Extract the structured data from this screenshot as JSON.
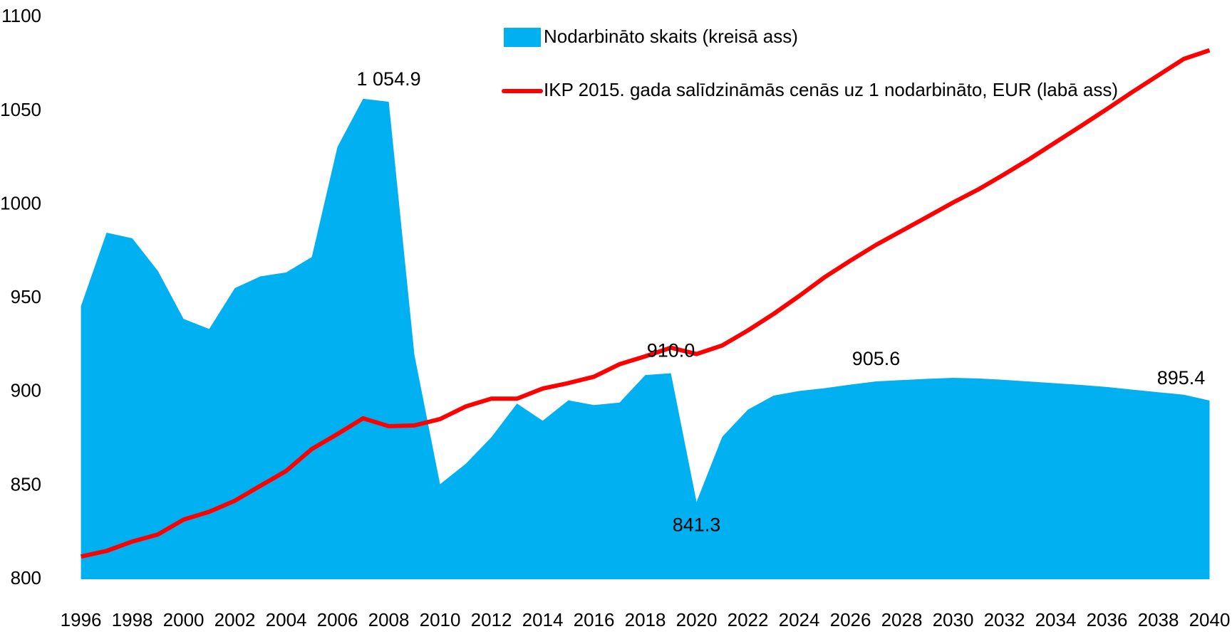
{
  "chart_data": {
    "type": "area-line",
    "x": [
      1996,
      1997,
      1998,
      1999,
      2000,
      2001,
      2002,
      2003,
      2004,
      2005,
      2006,
      2007,
      2008,
      2009,
      2010,
      2011,
      2012,
      2013,
      2014,
      2015,
      2016,
      2017,
      2018,
      2019,
      2020,
      2021,
      2022,
      2023,
      2024,
      2025,
      2026,
      2027,
      2028,
      2029,
      2030,
      2031,
      2032,
      2033,
      2034,
      2035,
      2036,
      2037,
      2038,
      2039,
      2040
    ],
    "series": [
      {
        "name": "Nodarbināto skaits (kreisā ass)",
        "kind": "area",
        "color": "#00b0f0",
        "values": [
          945.8,
          985,
          982,
          964.6,
          939,
          933.6,
          955.4,
          961.7,
          963.8,
          972,
          1030.8,
          1056.5,
          1054.9,
          919.8,
          850.7,
          861.6,
          875.8,
          893.8,
          884.6,
          895.5,
          893,
          894.3,
          909,
          910.0,
          841.3,
          876,
          890.5,
          898,
          900.5,
          902,
          903.9,
          905.6,
          906.3,
          907,
          907.5,
          907.2,
          906.4,
          905.5,
          904.6,
          903.7,
          902.6,
          901.2,
          899.8,
          898.5,
          895.4
        ],
        "value_labels": [
          null,
          null,
          null,
          null,
          null,
          null,
          null,
          null,
          null,
          null,
          null,
          null,
          "1 054.9",
          null,
          null,
          null,
          null,
          null,
          null,
          null,
          null,
          null,
          null,
          "910.0",
          "841.3",
          null,
          null,
          null,
          null,
          null,
          null,
          "905.6",
          null,
          null,
          null,
          null,
          null,
          null,
          null,
          null,
          null,
          null,
          null,
          null,
          "895.4"
        ]
      },
      {
        "name": "IKP 2015. gada salīdzināmās cenās uz 1 nodarbināto, EUR (labā ass)",
        "kind": "line",
        "color": "#ff0000",
        "values": [
          812.1,
          815.1,
          820.1,
          823.9,
          831.8,
          836,
          841.9,
          849.9,
          857.8,
          869.5,
          877.5,
          885.9,
          881.7,
          882.1,
          885.5,
          892.2,
          896.4,
          896.4,
          901.8,
          904.7,
          908.1,
          914.8,
          919,
          923.6,
          920.2,
          924.8,
          932.8,
          941.6,
          951.2,
          961.3,
          970.1,
          978.5,
          986,
          993.5,
          1001.1,
          1008.2,
          1016.2,
          1024.5,
          1033.3,
          1042.1,
          1051,
          1060.2,
          1069,
          1077.8,
          1082.4
        ]
      }
    ],
    "xlim": [
      1996,
      2040
    ],
    "xticks": [
      1996,
      1998,
      2000,
      2002,
      2004,
      2006,
      2008,
      2010,
      2012,
      2014,
      2016,
      2018,
      2020,
      2022,
      2024,
      2026,
      2028,
      2030,
      2032,
      2034,
      2036,
      2038,
      2040
    ],
    "ylim": [
      800,
      1100
    ],
    "yticks": [
      800,
      850,
      900,
      950,
      1000,
      1050,
      1100
    ],
    "grid": false,
    "legend": "top"
  }
}
